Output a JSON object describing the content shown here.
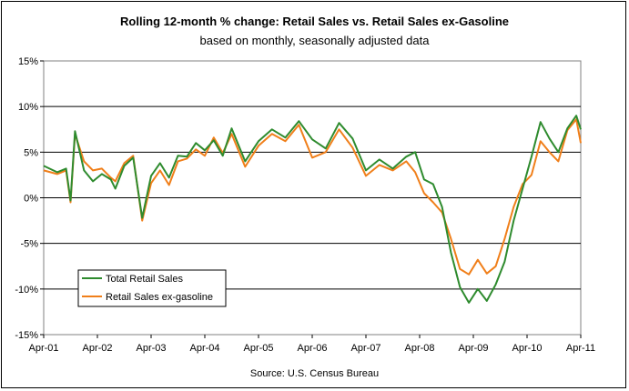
{
  "chart_data": {
    "type": "line",
    "title": "Rolling 12-month %  change: Retail Sales vs. Retail Sales ex-Gasoline",
    "subtitle": "based on monthly, seasonally adjusted data",
    "source": "Source: U.S. Census Bureau",
    "ylim": [
      -15,
      15
    ],
    "y_ticks": [
      "15%",
      "10%",
      "5%",
      "0%",
      "-5%",
      "-10%",
      "-15%"
    ],
    "x_ticks": [
      "Apr-01",
      "Apr-02",
      "Apr-03",
      "Apr-04",
      "Apr-05",
      "Apr-06",
      "Apr-07",
      "Apr-08",
      "Apr-09",
      "Apr-10",
      "Apr-11"
    ],
    "x_start": "Apr-01",
    "x_end": "Apr-11",
    "grid": "horizontal",
    "legend_position": "bottom-left",
    "series": [
      {
        "name": "Total Retail Sales",
        "color": "#2e8b2e",
        "points": [
          [
            "Apr-01",
            3.5
          ],
          [
            "Jul-01",
            2.8
          ],
          [
            "Sep-01",
            3.2
          ],
          [
            "Oct-01",
            -0.3
          ],
          [
            "Nov-01",
            7.3
          ],
          [
            "Jan-02",
            3.0
          ],
          [
            "Mar-02",
            1.8
          ],
          [
            "May-02",
            2.6
          ],
          [
            "Jul-02",
            2.0
          ],
          [
            "Aug-02",
            1.0
          ],
          [
            "Oct-02",
            3.5
          ],
          [
            "Dec-02",
            4.4
          ],
          [
            "Feb-03",
            -2.2
          ],
          [
            "Apr-03",
            2.4
          ],
          [
            "Jun-03",
            3.8
          ],
          [
            "Aug-03",
            2.2
          ],
          [
            "Oct-03",
            4.6
          ],
          [
            "Dec-03",
            4.5
          ],
          [
            "Feb-04",
            6.0
          ],
          [
            "Apr-04",
            5.2
          ],
          [
            "Jun-04",
            6.3
          ],
          [
            "Aug-04",
            4.6
          ],
          [
            "Oct-04",
            7.6
          ],
          [
            "Jan-05",
            4.0
          ],
          [
            "Apr-05",
            6.2
          ],
          [
            "Jul-05",
            7.5
          ],
          [
            "Oct-05",
            6.6
          ],
          [
            "Jan-06",
            8.4
          ],
          [
            "Apr-06",
            6.4
          ],
          [
            "Jul-06",
            5.4
          ],
          [
            "Oct-06",
            8.2
          ],
          [
            "Jan-07",
            6.5
          ],
          [
            "Apr-07",
            3.0
          ],
          [
            "Jul-07",
            4.2
          ],
          [
            "Oct-07",
            3.2
          ],
          [
            "Jan-08",
            4.5
          ],
          [
            "Mar-08",
            5.0
          ],
          [
            "May-08",
            2.0
          ],
          [
            "Jul-08",
            1.5
          ],
          [
            "Sep-08",
            -1.0
          ],
          [
            "Nov-08",
            -6.0
          ],
          [
            "Jan-09",
            -9.8
          ],
          [
            "Mar-09",
            -11.5
          ],
          [
            "May-09",
            -10.0
          ],
          [
            "Jul-09",
            -11.3
          ],
          [
            "Sep-09",
            -9.5
          ],
          [
            "Nov-09",
            -7.0
          ],
          [
            "Jan-10",
            -2.5
          ],
          [
            "Mar-10",
            1.0
          ],
          [
            "May-10",
            4.5
          ],
          [
            "Jul-10",
            8.3
          ],
          [
            "Sep-10",
            6.5
          ],
          [
            "Nov-10",
            5.0
          ],
          [
            "Jan-11",
            7.6
          ],
          [
            "Mar-11",
            9.0
          ],
          [
            "Apr-11",
            7.5
          ]
        ]
      },
      {
        "name": "Retail Sales ex-gasoline",
        "color": "#f07f1a",
        "points": [
          [
            "Apr-01",
            3.0
          ],
          [
            "Jul-01",
            2.6
          ],
          [
            "Sep-01",
            3.0
          ],
          [
            "Oct-01",
            -0.5
          ],
          [
            "Nov-01",
            7.0
          ],
          [
            "Jan-02",
            4.0
          ],
          [
            "Mar-02",
            3.0
          ],
          [
            "May-02",
            3.2
          ],
          [
            "Jul-02",
            2.2
          ],
          [
            "Aug-02",
            1.8
          ],
          [
            "Oct-02",
            3.8
          ],
          [
            "Dec-02",
            4.6
          ],
          [
            "Feb-03",
            -2.5
          ],
          [
            "Apr-03",
            1.6
          ],
          [
            "Jun-03",
            3.0
          ],
          [
            "Aug-03",
            1.4
          ],
          [
            "Oct-03",
            4.0
          ],
          [
            "Dec-03",
            4.3
          ],
          [
            "Feb-04",
            5.3
          ],
          [
            "Apr-04",
            4.6
          ],
          [
            "Jun-04",
            6.6
          ],
          [
            "Aug-04",
            4.9
          ],
          [
            "Oct-04",
            7.0
          ],
          [
            "Jan-05",
            3.4
          ],
          [
            "Apr-05",
            5.7
          ],
          [
            "Jul-05",
            7.0
          ],
          [
            "Oct-05",
            6.2
          ],
          [
            "Jan-06",
            8.0
          ],
          [
            "Apr-06",
            4.4
          ],
          [
            "Jul-06",
            5.0
          ],
          [
            "Oct-06",
            7.5
          ],
          [
            "Jan-07",
            5.5
          ],
          [
            "Apr-07",
            2.4
          ],
          [
            "Jul-07",
            3.6
          ],
          [
            "Oct-07",
            3.0
          ],
          [
            "Jan-08",
            4.0
          ],
          [
            "Mar-08",
            2.8
          ],
          [
            "May-08",
            0.5
          ],
          [
            "Jul-08",
            -0.5
          ],
          [
            "Sep-08",
            -1.6
          ],
          [
            "Nov-08",
            -4.5
          ],
          [
            "Jan-09",
            -7.8
          ],
          [
            "Mar-09",
            -8.4
          ],
          [
            "May-09",
            -6.8
          ],
          [
            "Jul-09",
            -8.3
          ],
          [
            "Sep-09",
            -7.5
          ],
          [
            "Nov-09",
            -4.5
          ],
          [
            "Jan-10",
            -1.0
          ],
          [
            "Mar-10",
            1.5
          ],
          [
            "May-10",
            2.5
          ],
          [
            "Jul-10",
            6.2
          ],
          [
            "Sep-10",
            5.0
          ],
          [
            "Nov-10",
            4.0
          ],
          [
            "Jan-11",
            7.4
          ],
          [
            "Mar-11",
            8.6
          ],
          [
            "Apr-11",
            6.0
          ]
        ]
      }
    ]
  }
}
